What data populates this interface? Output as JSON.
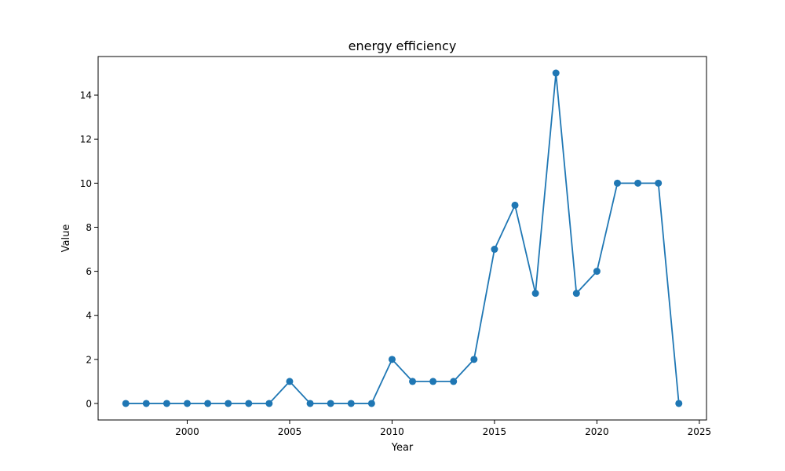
{
  "chart_data": {
    "type": "line",
    "title": "energy efficiency",
    "xlabel": "Year",
    "ylabel": "Value",
    "x": [
      1997,
      1998,
      1999,
      2000,
      2001,
      2002,
      2003,
      2004,
      2005,
      2006,
      2007,
      2008,
      2009,
      2010,
      2011,
      2012,
      2013,
      2014,
      2015,
      2016,
      2017,
      2018,
      2019,
      2020,
      2021,
      2022,
      2023,
      2024
    ],
    "series": [
      {
        "values": [
          0,
          0,
          0,
          0,
          0,
          0,
          0,
          0,
          1,
          0,
          0,
          0,
          0,
          2,
          1,
          1,
          1,
          2,
          7,
          9,
          5,
          15,
          5,
          6,
          10,
          10,
          10,
          0
        ],
        "color": "#1f77b4",
        "marker": "circle"
      }
    ],
    "xlim": [
      1995.65,
      2025.35
    ],
    "ylim": [
      -0.75,
      15.75
    ],
    "xticks": [
      2000,
      2005,
      2010,
      2015,
      2020,
      2025
    ],
    "yticks": [
      0,
      2,
      4,
      6,
      8,
      10,
      12,
      14
    ],
    "grid": false,
    "legend": false
  }
}
